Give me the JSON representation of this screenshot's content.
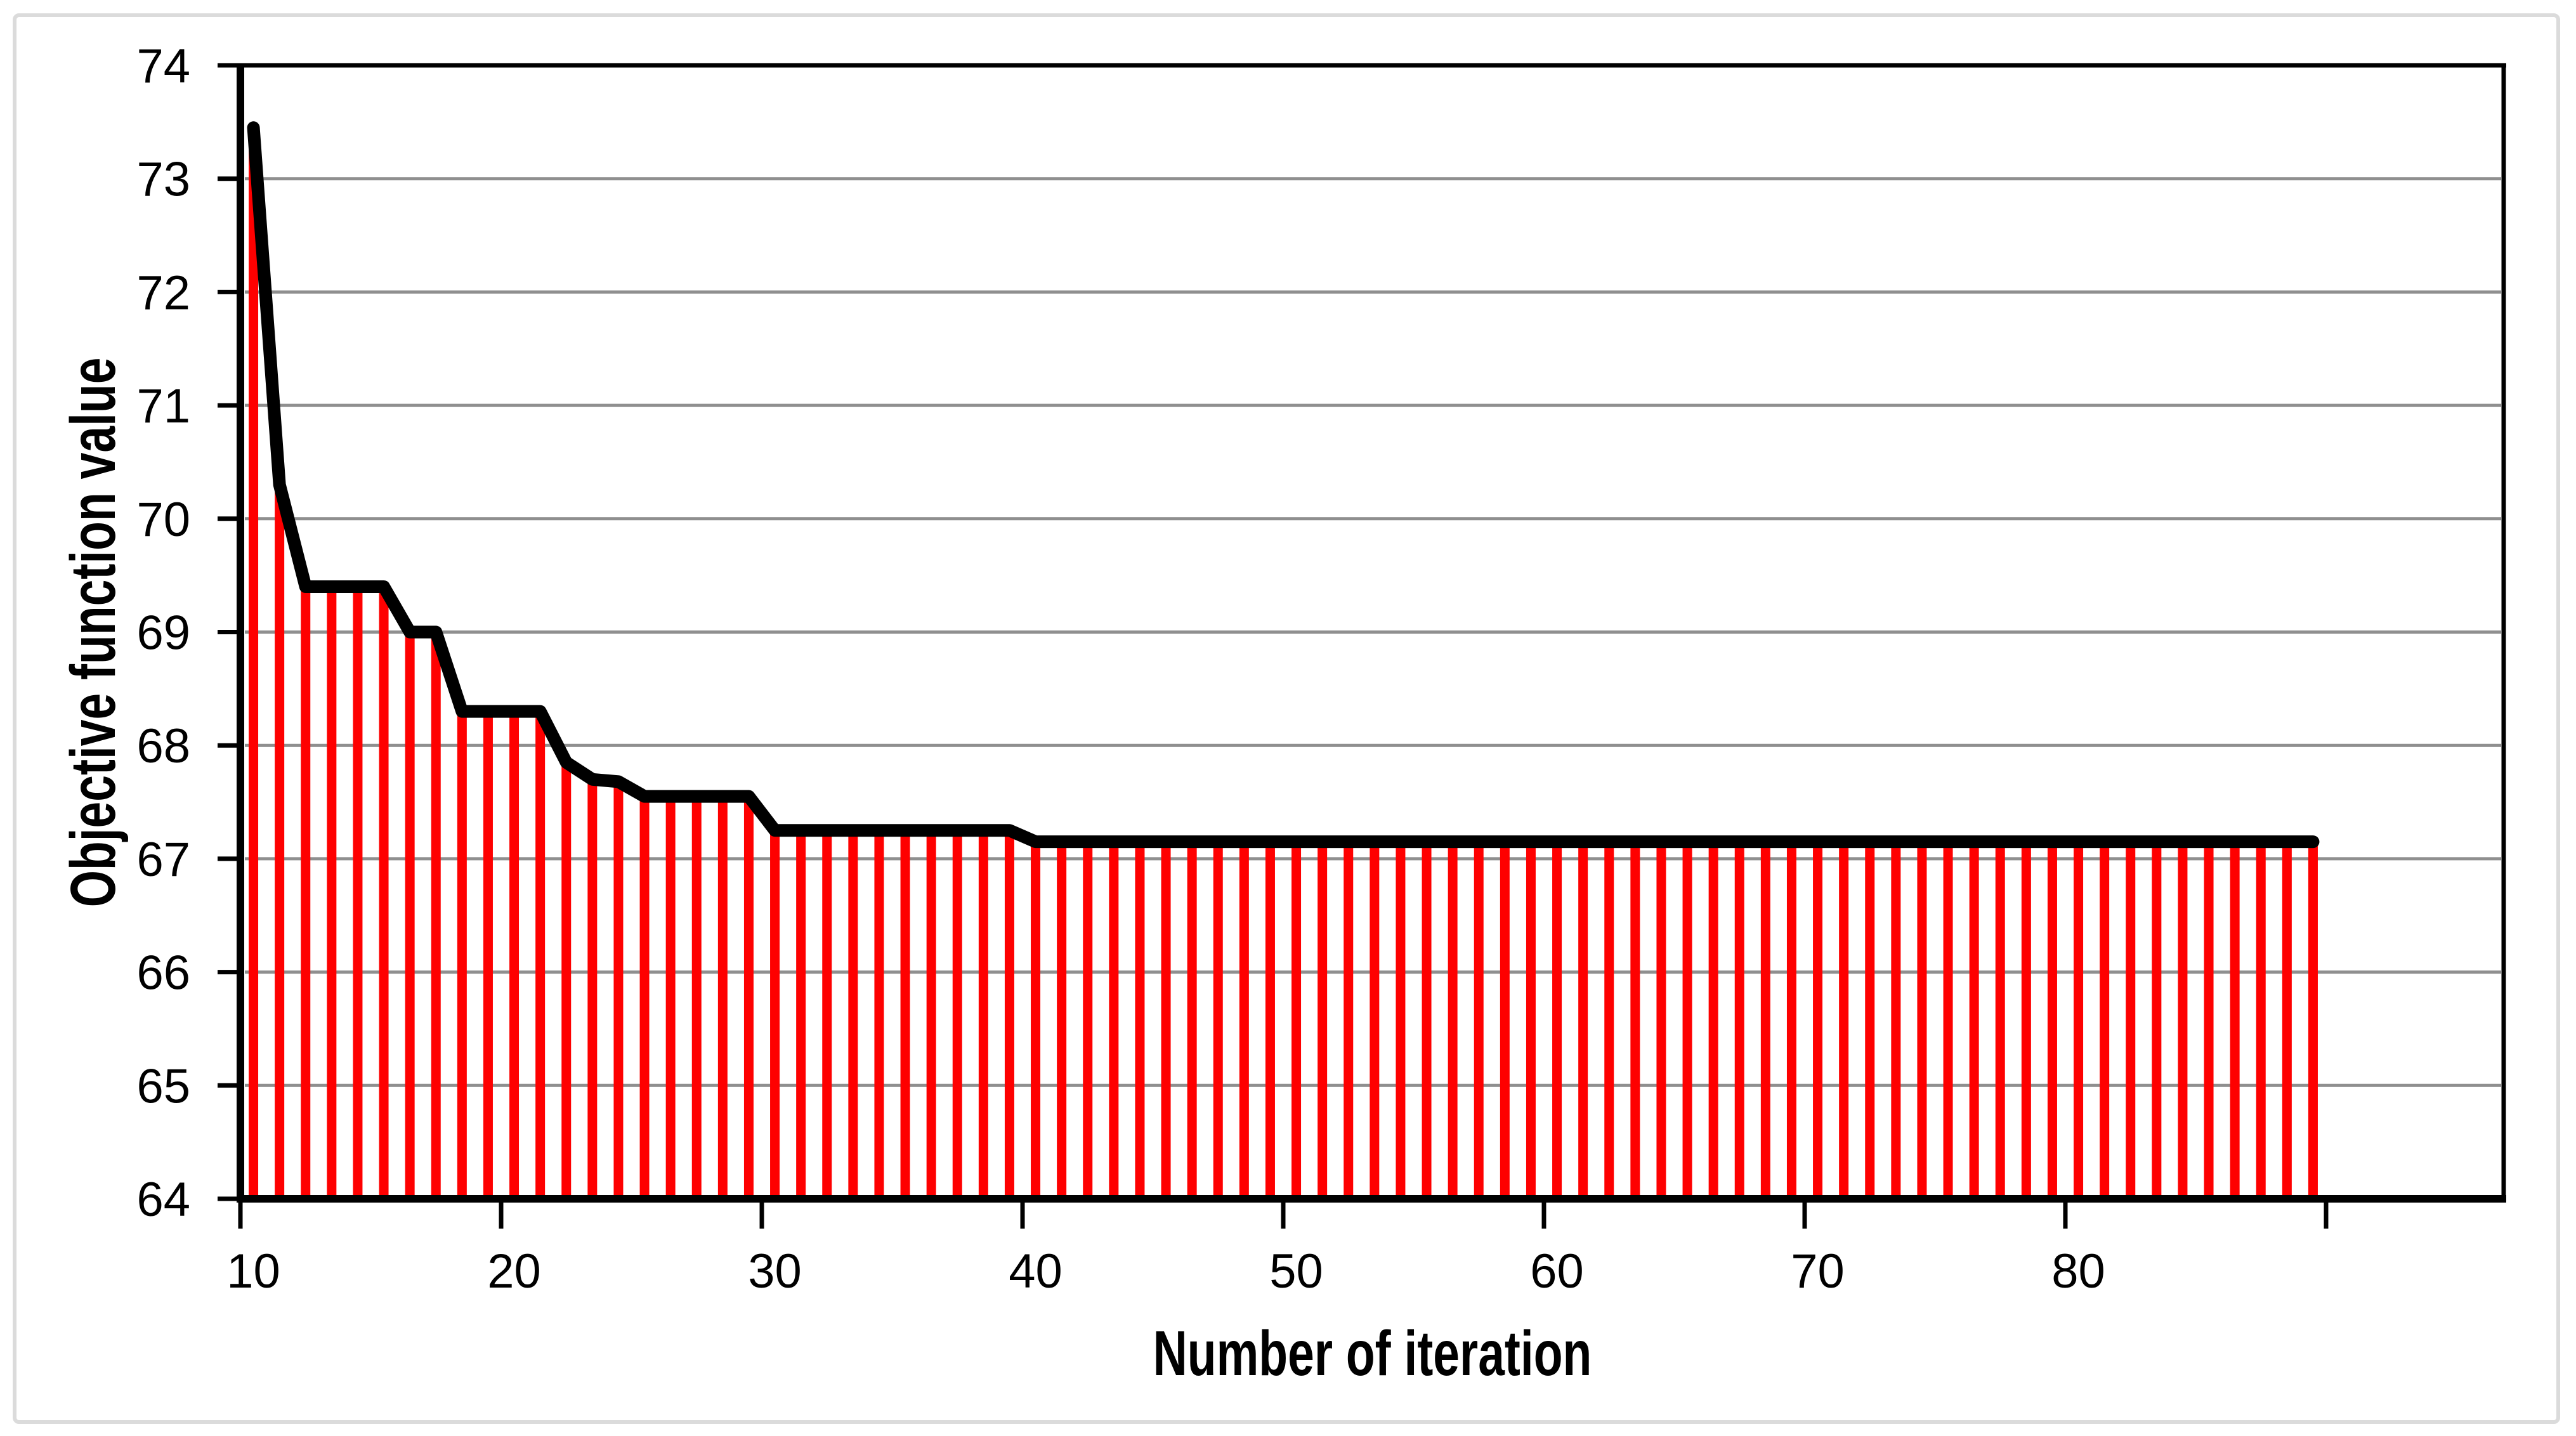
{
  "figure": {
    "background_color": "#FFFFFF",
    "border_color": "#DBDBDB"
  },
  "chart_data": {
    "type": "bar",
    "subtype": "bars-with-line-overlay",
    "title": "",
    "xlabel": "Number of iteration",
    "ylabel": "Objective function value",
    "x_start": 10,
    "x_end": 89,
    "values": [
      73.45,
      70.3,
      69.4,
      69.4,
      69.4,
      69.4,
      69.0,
      69.0,
      68.3,
      68.3,
      68.3,
      68.3,
      67.85,
      67.7,
      67.68,
      67.55,
      67.55,
      67.55,
      67.55,
      67.55,
      67.25,
      67.25,
      67.25,
      67.25,
      67.25,
      67.25,
      67.25,
      67.25,
      67.25,
      67.25,
      67.15,
      67.15,
      67.15,
      67.15,
      67.15,
      67.15,
      67.15,
      67.15,
      67.15,
      67.15,
      67.15,
      67.15,
      67.15,
      67.15,
      67.15,
      67.15,
      67.15,
      67.15,
      67.15,
      67.15,
      67.15,
      67.15,
      67.15,
      67.15,
      67.15,
      67.15,
      67.15,
      67.15,
      67.15,
      67.15,
      67.15,
      67.15,
      67.15,
      67.15,
      67.15,
      67.15,
      67.15,
      67.15,
      67.15,
      67.15,
      67.15,
      67.15,
      67.15,
      67.15,
      67.15,
      67.15,
      67.15,
      67.15,
      67.15,
      67.15
    ],
    "x_ticks": [
      10,
      20,
      30,
      40,
      50,
      60,
      70,
      80,
      90
    ],
    "x_tick_labels": [
      "10",
      "20",
      "30",
      "40",
      "50",
      "60",
      "70",
      "80"
    ],
    "y_ticks": [
      64,
      65,
      66,
      67,
      68,
      69,
      70,
      71,
      72,
      73,
      74
    ],
    "ylim": [
      64,
      74
    ],
    "grid": "horizontal-major",
    "legend": "none",
    "bar_color": "#FE0000",
    "line_color": "#000000",
    "grid_color": "#8F8F8F",
    "axis_color": "#000000"
  }
}
